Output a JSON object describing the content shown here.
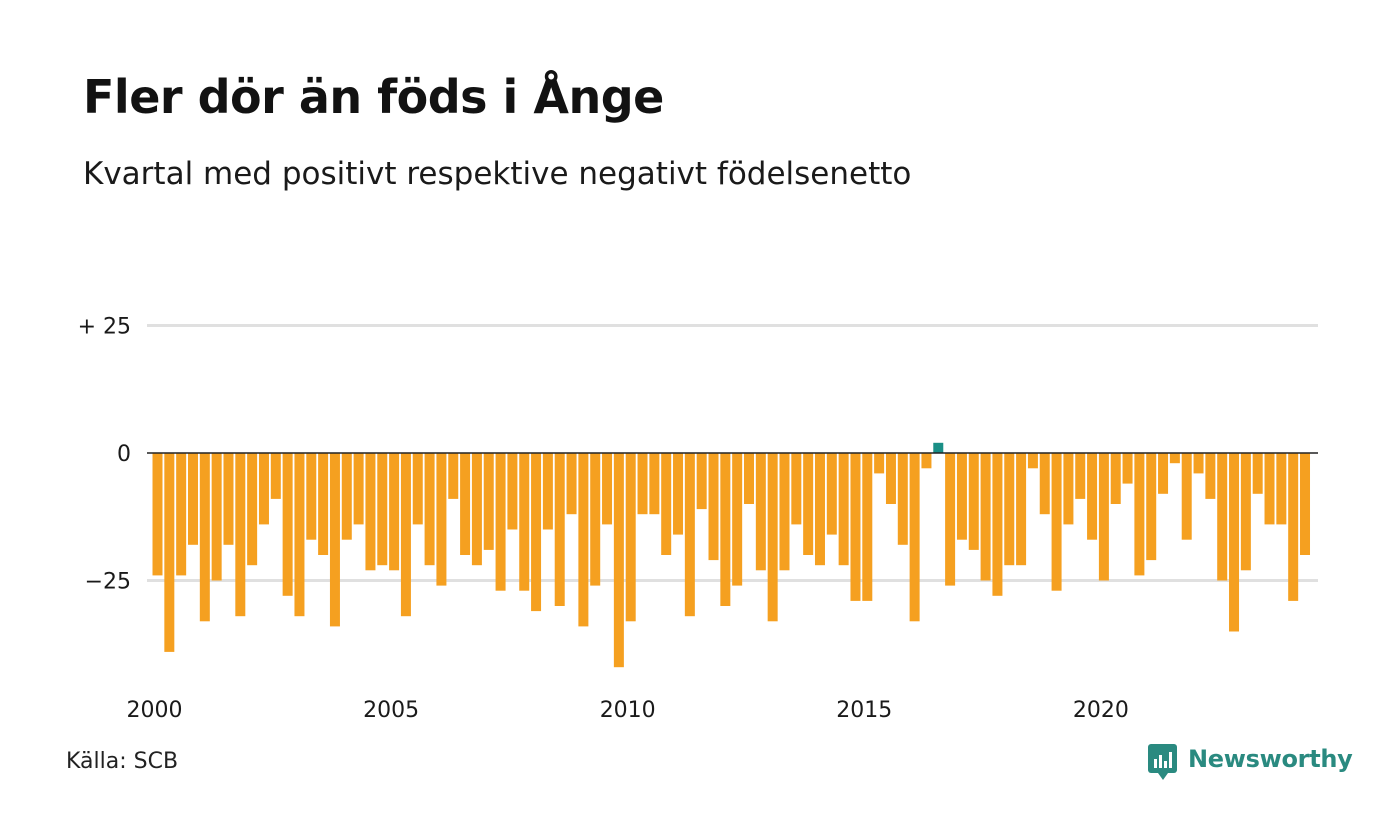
{
  "title": "Fler dör än föds i Ånge",
  "subtitle": "Kvartal med positivt respektive negativt födelsenetto",
  "source": "Källa: SCB",
  "brand": "Newsworthy",
  "colors": {
    "negative": "#f5a020",
    "positive": "#1a8f86",
    "grid": "#e0e0e0",
    "zero": "#222222",
    "brand": "#2a8a80"
  },
  "chart_data": {
    "type": "bar",
    "ylim": [
      -42,
      52
    ],
    "yticks": [
      {
        "value": 25,
        "label": "+ 25"
      },
      {
        "value": 0,
        "label": "0"
      },
      {
        "value": -25,
        "label": "−25"
      }
    ],
    "xticks": [
      {
        "index": 0,
        "label": "2000"
      },
      {
        "index": 20,
        "label": "2005"
      },
      {
        "index": 40,
        "label": "2010"
      },
      {
        "index": 60,
        "label": "2015"
      },
      {
        "index": 80,
        "label": "2020"
      }
    ],
    "start": "2000 Q1",
    "values": [
      -24,
      -39,
      -24,
      -18,
      -33,
      -25,
      -18,
      -32,
      -22,
      -14,
      -9,
      -28,
      -32,
      -17,
      -20,
      -34,
      -17,
      -14,
      -23,
      -22,
      -23,
      -32,
      -14,
      -22,
      -26,
      -9,
      -20,
      -22,
      -19,
      -27,
      -15,
      -27,
      -31,
      -15,
      -30,
      -12,
      -34,
      -26,
      -14,
      -42,
      -33,
      -12,
      -12,
      -20,
      -16,
      -32,
      -11,
      -21,
      -30,
      -26,
      -10,
      -23,
      -33,
      -23,
      -14,
      -20,
      -22,
      -16,
      -22,
      -29,
      -29,
      -4,
      -10,
      -18,
      -33,
      -3,
      2,
      -26,
      -17,
      -19,
      -25,
      -28,
      -22,
      -22,
      -3,
      -12,
      -27,
      -14,
      -9,
      -17,
      -25,
      -10,
      -6,
      -24,
      -21,
      -8,
      -2,
      -17,
      -4,
      -9,
      -25,
      -35,
      -23,
      -8,
      -14,
      -14,
      -29,
      -20
    ]
  }
}
